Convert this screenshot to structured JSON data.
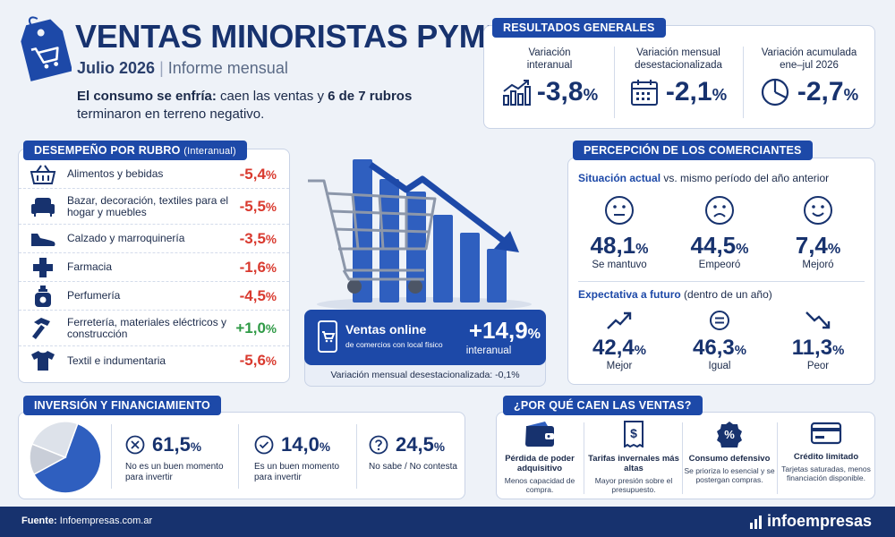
{
  "header": {
    "title": "VENTAS MINORISTAS PYME",
    "subtitle_date": "Julio 2026",
    "subtitle_sep": "|",
    "subtitle_report": "Informe mensual",
    "lead_strong1": "El consumo se enfría:",
    "lead_text1": " caen las ventas y ",
    "lead_strong2": "6 de 7 rubros",
    "lead_text2": "terminaron en terreno negativo."
  },
  "resultados": {
    "title": "RESULTADOS GENERALES",
    "items": [
      {
        "label": "Variación interanual",
        "value": "-3,8",
        "unit": "%",
        "icon": "chart-up-icon"
      },
      {
        "label": "Variación mensual desestacionalizada",
        "value": "-2,1",
        "unit": "%",
        "icon": "calendar-icon"
      },
      {
        "label": "Variación acumulada ene–jul 2026",
        "value": "-2,7",
        "unit": "%",
        "icon": "pie-icon"
      }
    ]
  },
  "rubros": {
    "title": "DESEMPEÑO POR RUBRO",
    "title_note": "(Interanual)",
    "items": [
      {
        "label": "Alimentos y bebidas",
        "value": "-5,4",
        "unit": "%",
        "color": "#d93a2f",
        "icon": "basket-icon"
      },
      {
        "label": "Bazar, decoración, textiles para el hogar y muebles",
        "value": "-5,5",
        "unit": "%",
        "color": "#d93a2f",
        "icon": "armchair-icon"
      },
      {
        "label": "Calzado y marroquinería",
        "value": "-3,5",
        "unit": "%",
        "color": "#d93a2f",
        "icon": "shoe-icon"
      },
      {
        "label": "Farmacia",
        "value": "-1,6",
        "unit": "%",
        "color": "#d93a2f",
        "icon": "cross-icon"
      },
      {
        "label": "Perfumería",
        "value": "-4,5",
        "unit": "%",
        "color": "#d93a2f",
        "icon": "perfume-icon"
      },
      {
        "label": "Ferretería, materiales eléctricos y construcción",
        "value": "+1,0",
        "unit": "%",
        "color": "#2f9a46",
        "icon": "hammer-icon"
      },
      {
        "label": "Textil e indumentaria",
        "value": "-5,6",
        "unit": "%",
        "color": "#d93a2f",
        "icon": "tshirt-icon"
      }
    ]
  },
  "online": {
    "title": "Ventas online",
    "sub": "de comercios con local físico",
    "value": "+14,9",
    "unit": "%",
    "value_note": "interanual",
    "monthly": "Variación mensual desestacionalizada: -0,1%",
    "icon": "phone-cart-icon"
  },
  "percepcion": {
    "title": "PERCEPCIÓN DE LOS COMERCIANTES",
    "actual_strong": "Situación actual",
    "actual_rest": " vs. mismo período del año anterior",
    "actual": [
      {
        "value": "48,1",
        "unit": "%",
        "label": "Se mantuvo",
        "icon": "neutral-face-icon"
      },
      {
        "value": "44,5",
        "unit": "%",
        "label": "Empeoró",
        "icon": "sad-face-icon"
      },
      {
        "value": "7,4",
        "unit": "%",
        "label": "Mejoró",
        "icon": "happy-face-icon"
      }
    ],
    "futuro_strong": "Expectativa a futuro",
    "futuro_rest": " (dentro de un año)",
    "futuro": [
      {
        "value": "42,4",
        "unit": "%",
        "label": "Mejor",
        "icon": "trend-up-icon"
      },
      {
        "value": "46,3",
        "unit": "%",
        "label": "Igual",
        "icon": "equal-icon"
      },
      {
        "value": "11,3",
        "unit": "%",
        "label": "Peor",
        "icon": "trend-down-icon"
      }
    ]
  },
  "inversion": {
    "title": "INVERSIÓN Y FINANCIAMIENTO",
    "items": [
      {
        "value": "61,5",
        "unit": "%",
        "label": "No es un buen momento para invertir",
        "icon": "x-circle-icon",
        "color": "#2f5fbf"
      },
      {
        "value": "14,0",
        "unit": "%",
        "label": "Es un buen momento para invertir",
        "icon": "check-circle-icon",
        "color": "#c9ced8"
      },
      {
        "value": "24,5",
        "unit": "%",
        "label": "No sabe / No contesta",
        "icon": "question-circle-icon",
        "color": "#dde2ea"
      }
    ],
    "pie_fractions": [
      0.615,
      0.14,
      0.245
    ]
  },
  "porque": {
    "title": "¿POR QUÉ CAEN LAS VENTAS?",
    "items": [
      {
        "title": "Pérdida de poder adquisitivo",
        "text": "Menos capacidad de compra.",
        "icon": "wallet-icon"
      },
      {
        "title": "Tarifas invernales más altas",
        "text": "Mayor presión sobre el presupuesto.",
        "icon": "bill-icon"
      },
      {
        "title": "Consumo defensivo",
        "text": "Se prioriza lo esencial y se postergan compras.",
        "icon": "percent-badge-icon"
      },
      {
        "title": "Crédito limitado",
        "text": "Tarjetas saturadas, menos financiación disponible.",
        "icon": "credit-card-icon"
      }
    ]
  },
  "footer": {
    "source_label": "Fuente:",
    "source": "Infoempresas.com.ar",
    "brand": "infoempresas"
  },
  "colors": {
    "navy": "#17326e",
    "blue": "#1d49a8",
    "red": "#d93a2f",
    "green": "#2f9a46"
  }
}
